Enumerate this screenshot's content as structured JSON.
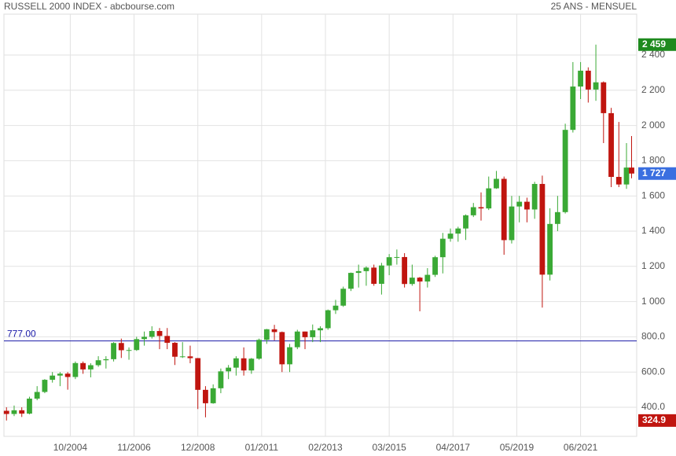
{
  "chart_data": {
    "type": "candlestick",
    "title": "RUSSELL 2000 INDEX - abcbourse.com",
    "subtitle": "25 ANS - MENSUEL",
    "x": [
      "2002-09",
      "2002-12",
      "2003-03",
      "2003-06",
      "2003-09",
      "2003-12",
      "2004-03",
      "2004-06",
      "2004-09",
      "2004-12",
      "2005-03",
      "2005-06",
      "2005-09",
      "2005-12",
      "2006-03",
      "2006-06",
      "2006-09",
      "2006-12",
      "2007-03",
      "2007-06",
      "2007-09",
      "2007-12",
      "2008-03",
      "2008-06",
      "2008-09",
      "2008-12",
      "2009-03",
      "2009-06",
      "2009-09",
      "2009-12",
      "2010-03",
      "2010-06",
      "2010-09",
      "2010-12",
      "2011-03",
      "2011-06",
      "2011-09",
      "2011-12",
      "2012-03",
      "2012-06",
      "2012-09",
      "2012-12",
      "2013-03",
      "2013-06",
      "2013-09",
      "2013-12",
      "2014-03",
      "2014-06",
      "2014-09",
      "2014-12",
      "2015-03",
      "2015-06",
      "2015-09",
      "2015-12",
      "2016-03",
      "2016-06",
      "2016-09",
      "2016-12",
      "2017-03",
      "2017-06",
      "2017-09",
      "2017-12",
      "2018-03",
      "2018-06",
      "2018-09",
      "2018-12",
      "2019-03",
      "2019-06",
      "2019-09",
      "2019-12",
      "2020-03",
      "2020-06",
      "2020-09",
      "2020-12",
      "2021-03",
      "2021-06",
      "2021-09",
      "2021-12",
      "2022-03",
      "2022-06",
      "2022-09",
      "2022-12",
      "2023-02"
    ],
    "open": [
      380,
      362,
      383,
      364,
      449,
      487,
      556,
      580,
      591,
      572,
      651,
      615,
      639,
      667,
      673,
      765,
      724,
      725,
      787,
      800,
      833,
      805,
      766,
      687,
      689,
      679,
      499,
      423,
      508,
      604,
      625,
      678,
      609,
      676,
      783,
      843,
      827,
      644,
      741,
      830,
      798,
      837,
      849,
      951,
      977,
      1073,
      1163,
      1173,
      1193,
      1101,
      1205,
      1252,
      1253,
      1100,
      1136,
      1114,
      1152,
      1252,
      1357,
      1386,
      1415,
      1490,
      1536,
      1529,
      1643,
      1697,
      1349,
      1540,
      1567,
      1523,
      1668,
      1153,
      1441,
      1508,
      1975,
      2221,
      2311,
      2204,
      2245,
      2070,
      1708,
      1665,
      1761
    ],
    "high": [
      400,
      410,
      400,
      460,
      520,
      560,
      600,
      600,
      600,
      660,
      660,
      650,
      690,
      690,
      770,
      790,
      740,
      800,
      830,
      860,
      850,
      850,
      770,
      770,
      750,
      680,
      520,
      530,
      620,
      640,
      690,
      740,
      680,
      790,
      845,
      868,
      830,
      760,
      840,
      830,
      870,
      860,
      955,
      1010,
      1085,
      1165,
      1210,
      1200,
      1210,
      1220,
      1270,
      1296,
      1275,
      1210,
      1140,
      1190,
      1260,
      1390,
      1415,
      1425,
      1495,
      1560,
      1620,
      1710,
      1742,
      1710,
      1600,
      1600,
      1590,
      1680,
      1715,
      1530,
      1600,
      2010,
      2360,
      2360,
      2330,
      2459,
      2250,
      2100,
      2020,
      1900,
      1940
    ],
    "low": [
      324.9,
      350,
      345,
      360,
      440,
      480,
      540,
      520,
      500,
      560,
      590,
      570,
      630,
      620,
      660,
      680,
      670,
      720,
      750,
      790,
      730,
      730,
      640,
      680,
      650,
      390,
      343,
      420,
      480,
      560,
      580,
      580,
      590,
      670,
      760,
      780,
      600,
      600,
      730,
      730,
      770,
      770,
      840,
      930,
      970,
      1060,
      1080,
      1090,
      1090,
      1040,
      1150,
      1210,
      1080,
      1090,
      945,
      1080,
      1140,
      1160,
      1340,
      1340,
      1350,
      1480,
      1460,
      1520,
      1640,
      1266,
      1330,
      1450,
      1450,
      1470,
      966,
      1120,
      1400,
      1500,
      1960,
      2150,
      2130,
      2140,
      1900,
      1650,
      1650,
      1640,
      1700
    ],
    "close": [
      362,
      383,
      364,
      449,
      487,
      556,
      580,
      591,
      572,
      651,
      615,
      639,
      667,
      673,
      765,
      724,
      725,
      787,
      800,
      833,
      805,
      766,
      687,
      689,
      679,
      499,
      423,
      508,
      604,
      625,
      678,
      609,
      676,
      783,
      843,
      827,
      644,
      741,
      830,
      798,
      837,
      849,
      951,
      977,
      1073,
      1163,
      1173,
      1193,
      1101,
      1205,
      1252,
      1253,
      1100,
      1136,
      1114,
      1152,
      1252,
      1357,
      1386,
      1415,
      1490,
      1536,
      1529,
      1643,
      1697,
      1349,
      1540,
      1567,
      1523,
      1668,
      1153,
      1441,
      1508,
      1975,
      2221,
      2311,
      2204,
      2245,
      2070,
      1708,
      1665,
      1761,
      1727
    ],
    "up_color": "#3aa935",
    "down_color": "#c0150f",
    "xlim": [
      "2002-08",
      "2023-04"
    ],
    "xticks": [
      {
        "value": "2004-10",
        "label": "10/2004"
      },
      {
        "value": "2006-11",
        "label": "11/2006"
      },
      {
        "value": "2008-12",
        "label": "12/2008"
      },
      {
        "value": "2011-01",
        "label": "01/2011"
      },
      {
        "value": "2013-02",
        "label": "02/2013"
      },
      {
        "value": "2015-03",
        "label": "03/2015"
      },
      {
        "value": "2017-04",
        "label": "04/2017"
      },
      {
        "value": "2019-05",
        "label": "05/2019"
      },
      {
        "value": "2021-06",
        "label": "06/2021"
      }
    ],
    "ylim": [
      235,
      2632
    ],
    "yticks": [
      {
        "value": 400,
        "label": "400.0"
      },
      {
        "value": 600,
        "label": "600.0"
      },
      {
        "value": 800,
        "label": "800.0"
      },
      {
        "value": 1000,
        "label": "1 000"
      },
      {
        "value": 1200,
        "label": "1 200"
      },
      {
        "value": 1400,
        "label": "1 400"
      },
      {
        "value": 1600,
        "label": "1 600"
      },
      {
        "value": 1800,
        "label": "1 800"
      },
      {
        "value": 2000,
        "label": "2 000"
      },
      {
        "value": 2200,
        "label": "2 200"
      },
      {
        "value": 2400,
        "label": "2 400"
      }
    ],
    "grid": true,
    "reference_line": {
      "value": 777,
      "label": "777.00",
      "color": "#1a1aa8"
    },
    "badges": [
      {
        "value": 2459,
        "label": "2 459",
        "color": "#1e8a1e"
      },
      {
        "value": 1727,
        "label": "1 727",
        "color": "#3a6fe0"
      },
      {
        "value": 324.9,
        "label": "324.9",
        "color": "#c0150f"
      }
    ]
  }
}
